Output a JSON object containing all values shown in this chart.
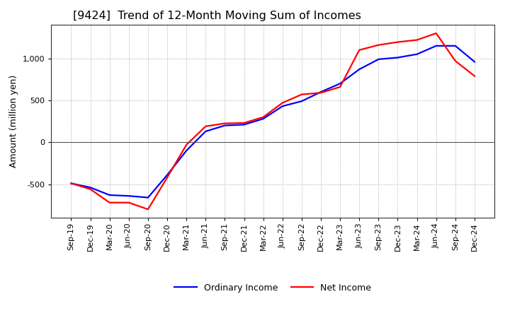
{
  "title": "[9424]  Trend of 12-Month Moving Sum of Incomes",
  "ylabel": "Amount (million yen)",
  "x_labels": [
    "Sep-19",
    "Dec-19",
    "Mar-20",
    "Jun-20",
    "Sep-20",
    "Dec-20",
    "Mar-21",
    "Jun-21",
    "Sep-21",
    "Dec-21",
    "Mar-22",
    "Jun-22",
    "Sep-22",
    "Dec-22",
    "Mar-23",
    "Jun-23",
    "Sep-23",
    "Dec-23",
    "Mar-24",
    "Jun-24",
    "Sep-24",
    "Dec-24"
  ],
  "ordinary_income": [
    -490,
    -540,
    -630,
    -640,
    -660,
    -390,
    -100,
    130,
    200,
    210,
    280,
    430,
    490,
    600,
    700,
    870,
    990,
    1010,
    1050,
    1150,
    1150,
    960
  ],
  "net_income": [
    -490,
    -560,
    -720,
    -720,
    -800,
    -420,
    -30,
    190,
    225,
    230,
    300,
    470,
    570,
    590,
    660,
    1100,
    1160,
    1195,
    1220,
    1300,
    970,
    790
  ],
  "ordinary_color": "#0000ff",
  "net_color": "#ff0000",
  "ylim": [
    -900,
    1400
  ],
  "yticks": [
    -500,
    0,
    500,
    1000
  ],
  "background_color": "#ffffff",
  "grid_color": "#999999",
  "title_fontsize": 11.5,
  "axis_label_fontsize": 9,
  "tick_fontsize": 8,
  "legend_labels": [
    "Ordinary Income",
    "Net Income"
  ]
}
